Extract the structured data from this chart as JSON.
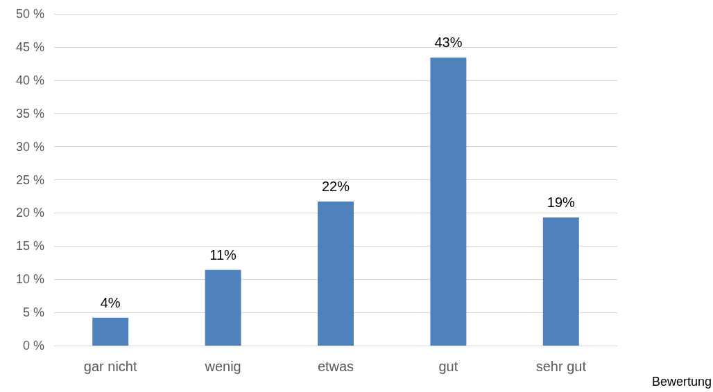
{
  "chart_data": {
    "type": "bar",
    "xlabel": "Bewertung",
    "categories": [
      "gar nicht",
      "wenig",
      "etwas",
      "gut",
      "sehr gut"
    ],
    "values": [
      4.2,
      11.4,
      21.7,
      43.4,
      19.3
    ],
    "value_labels": [
      "4%",
      "11%",
      "22%",
      "43%",
      "19%"
    ],
    "color": "#4f81bd",
    "ylim": [
      0,
      50
    ],
    "yticks": [
      {
        "value": 0,
        "label": "0 %"
      },
      {
        "value": 5,
        "label": "5 %"
      },
      {
        "value": 10,
        "label": "10 %"
      },
      {
        "value": 15,
        "label": "15 %"
      },
      {
        "value": 20,
        "label": "20 %"
      },
      {
        "value": 25,
        "label": "25 %"
      },
      {
        "value": 30,
        "label": "30 %"
      },
      {
        "value": 35,
        "label": "35 %"
      },
      {
        "value": 40,
        "label": "40 %"
      },
      {
        "value": 45,
        "label": "45 %"
      },
      {
        "value": 50,
        "label": "50 %"
      }
    ],
    "grid": "y"
  }
}
